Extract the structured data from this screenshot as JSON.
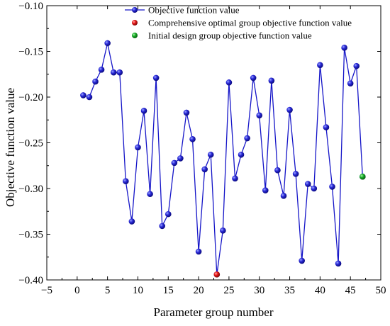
{
  "chart_data": {
    "type": "line",
    "title": "",
    "xlabel": "Parameter group number",
    "ylabel": "Objective function value",
    "xlim": [
      -5,
      50
    ],
    "ylim": [
      -0.4,
      -0.1
    ],
    "xticks": [
      -5,
      0,
      5,
      10,
      15,
      20,
      25,
      30,
      35,
      40,
      45,
      50
    ],
    "yticks": [
      -0.4,
      -0.35,
      -0.3,
      -0.25,
      -0.2,
      -0.15,
      -0.1
    ],
    "xtick_labels": [
      "−5",
      "0",
      "5",
      "10",
      "15",
      "20",
      "25",
      "30",
      "35",
      "40",
      "45",
      "50"
    ],
    "ytick_labels": [
      "−0.40",
      "−0.35",
      "−0.30",
      "−0.25",
      "−0.20",
      "−0.15",
      "−0.10"
    ],
    "grid": false,
    "legend_position": "top-center",
    "series": [
      {
        "name": "Objective function value",
        "color": "#1515c8",
        "marker": "sphere",
        "x": [
          1,
          2,
          3,
          4,
          5,
          6,
          7,
          8,
          9,
          10,
          11,
          12,
          13,
          14,
          15,
          16,
          17,
          18,
          19,
          20,
          21,
          22,
          23,
          24,
          25,
          26,
          27,
          28,
          29,
          30,
          31,
          32,
          33,
          34,
          35,
          36,
          37,
          38,
          39,
          40,
          41,
          42,
          43,
          44,
          45,
          46,
          47
        ],
        "y": [
          -0.198,
          -0.2,
          -0.183,
          -0.17,
          -0.141,
          -0.173,
          -0.173,
          -0.292,
          -0.336,
          -0.255,
          -0.215,
          -0.306,
          -0.179,
          -0.341,
          -0.328,
          -0.272,
          -0.267,
          -0.217,
          -0.246,
          -0.369,
          -0.279,
          -0.263,
          -0.394,
          -0.346,
          -0.184,
          -0.289,
          -0.263,
          -0.245,
          -0.179,
          -0.22,
          -0.302,
          -0.182,
          -0.28,
          -0.308,
          -0.214,
          -0.284,
          -0.379,
          -0.295,
          -0.3,
          -0.165,
          -0.233,
          -0.298,
          -0.382,
          -0.146,
          -0.185,
          -0.166,
          -0.287
        ]
      },
      {
        "name": "Comprehensive optimal group objective function value",
        "color": "#e01010",
        "marker": "sphere",
        "x": [
          23
        ],
        "y": [
          -0.394
        ]
      },
      {
        "name": "Initial design group objective function value",
        "color": "#10a020",
        "marker": "sphere",
        "x": [
          47
        ],
        "y": [
          -0.287
        ]
      }
    ]
  }
}
